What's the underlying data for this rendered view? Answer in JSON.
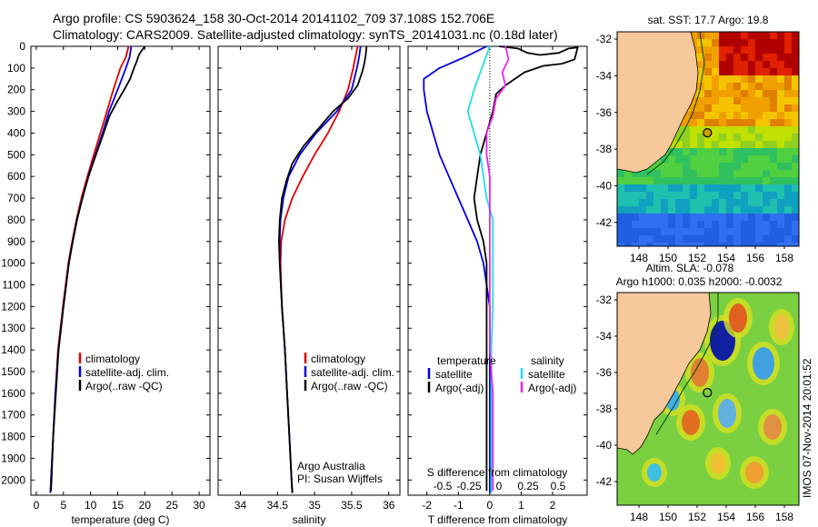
{
  "header": {
    "line1": "Argo profile: CS 5903624_158 30-Oct-2014 20141102_709 37.108S 152.706E",
    "line2": "Climatology: CARS2009. Satellite-adjusted climatology: synTS_20141031.nc (0.18d later)"
  },
  "colors": {
    "climatology": "#dd0000",
    "satellite": "#0000dd",
    "argo": "#000000",
    "sal_satellite": "#22ddee",
    "sal_argo": "#ee22ee",
    "land": "#f6c89a"
  },
  "depth_ticks": [
    "0",
    "100",
    "200",
    "300",
    "400",
    "500",
    "600",
    "700",
    "800",
    "900",
    "1000",
    "1100",
    "1200",
    "1300",
    "1400",
    "1500",
    "1600",
    "1700",
    "1800",
    "1900",
    "2000"
  ],
  "lat_ticks": [
    "-32",
    "-34",
    "-36",
    "-38",
    "-40",
    "-42"
  ],
  "lon_ticks": [
    "148",
    "150",
    "152",
    "154",
    "156",
    "158"
  ],
  "chart_data": [
    {
      "type": "line",
      "xlabel": "temperature (deg C)",
      "ylim": [
        2070,
        0
      ],
      "xlim": [
        -1,
        32
      ],
      "x_ticks": [
        "0",
        "5",
        "10",
        "15",
        "20",
        "25",
        "30"
      ],
      "legend": [
        "climatology",
        "satellite-adj. clim.",
        "Argo(..raw -QC)"
      ],
      "series": [
        {
          "name": "climatology",
          "color": "#dd0000",
          "points": [
            [
              17.0,
              0
            ],
            [
              16.5,
              50
            ],
            [
              15.5,
              100
            ],
            [
              14.2,
              200
            ],
            [
              13.0,
              300
            ],
            [
              11.8,
              400
            ],
            [
              10.6,
              500
            ],
            [
              9.4,
              600
            ],
            [
              8.3,
              700
            ],
            [
              7.4,
              800
            ],
            [
              6.6,
              900
            ],
            [
              5.9,
              1000
            ],
            [
              4.9,
              1200
            ],
            [
              4.0,
              1400
            ],
            [
              3.5,
              1600
            ],
            [
              3.1,
              1800
            ],
            [
              2.7,
              2000
            ],
            [
              2.6,
              2060
            ]
          ]
        },
        {
          "name": "satellite-adj. clim.",
          "color": "#0000dd",
          "points": [
            [
              17.5,
              0
            ],
            [
              17.2,
              50
            ],
            [
              16.5,
              100
            ],
            [
              15.0,
              200
            ],
            [
              13.4,
              300
            ],
            [
              12.2,
              400
            ],
            [
              10.9,
              500
            ],
            [
              9.6,
              600
            ],
            [
              8.5,
              700
            ],
            [
              7.5,
              800
            ],
            [
              6.7,
              900
            ],
            [
              6.0,
              1000
            ],
            [
              5.0,
              1200
            ],
            [
              4.1,
              1400
            ],
            [
              3.5,
              1600
            ],
            [
              3.1,
              1800
            ],
            [
              2.7,
              2000
            ],
            [
              2.6,
              2060
            ]
          ]
        },
        {
          "name": "Argo(..raw -QC)",
          "color": "#000000",
          "points": [
            [
              20.0,
              0
            ],
            [
              19.4,
              20
            ],
            [
              18.9,
              40
            ],
            [
              18.5,
              70
            ],
            [
              18.0,
              100
            ],
            [
              17.3,
              150
            ],
            [
              16.2,
              200
            ],
            [
              14.8,
              260
            ],
            [
              13.5,
              320
            ],
            [
              12.4,
              400
            ],
            [
              11.0,
              500
            ],
            [
              9.6,
              600
            ],
            [
              8.5,
              700
            ],
            [
              7.5,
              800
            ],
            [
              6.7,
              900
            ],
            [
              6.0,
              1000
            ],
            [
              5.0,
              1200
            ],
            [
              4.1,
              1400
            ],
            [
              3.6,
              1600
            ],
            [
              3.1,
              1800
            ],
            [
              2.8,
              2000
            ],
            [
              2.7,
              2050
            ]
          ]
        }
      ]
    },
    {
      "type": "line",
      "xlabel": "salinity",
      "ylim": [
        2070,
        0
      ],
      "xlim": [
        33.7,
        36.15
      ],
      "x_ticks": [
        "34",
        "34.5",
        "35",
        "35.5",
        "36"
      ],
      "legend": [
        "climatology",
        "satellite-adj. clim.",
        "Argo(..raw -QC)"
      ],
      "annotation": [
        "Argo Australia",
        "PI: Susan Wijffels"
      ],
      "series": [
        {
          "name": "climatology",
          "color": "#dd0000",
          "points": [
            [
              35.58,
              0
            ],
            [
              35.55,
              50
            ],
            [
              35.52,
              100
            ],
            [
              35.45,
              200
            ],
            [
              35.33,
              300
            ],
            [
              35.18,
              400
            ],
            [
              35.0,
              500
            ],
            [
              34.84,
              600
            ],
            [
              34.7,
              700
            ],
            [
              34.6,
              800
            ],
            [
              34.55,
              900
            ],
            [
              34.54,
              1000
            ],
            [
              34.56,
              1200
            ],
            [
              34.6,
              1400
            ],
            [
              34.63,
              1600
            ],
            [
              34.66,
              1800
            ],
            [
              34.69,
              2000
            ],
            [
              34.7,
              2060
            ]
          ]
        },
        {
          "name": "satellite-adj. clim.",
          "color": "#0000dd",
          "points": [
            [
              35.62,
              0
            ],
            [
              35.6,
              50
            ],
            [
              35.57,
              100
            ],
            [
              35.5,
              200
            ],
            [
              35.3,
              300
            ],
            [
              35.02,
              400
            ],
            [
              34.8,
              500
            ],
            [
              34.65,
              600
            ],
            [
              34.58,
              700
            ],
            [
              34.54,
              800
            ],
            [
              34.53,
              900
            ],
            [
              34.53,
              1000
            ],
            [
              34.56,
              1200
            ],
            [
              34.6,
              1400
            ],
            [
              34.63,
              1600
            ],
            [
              34.66,
              1800
            ],
            [
              34.69,
              2000
            ],
            [
              34.7,
              2060
            ]
          ]
        },
        {
          "name": "Argo(..raw -QC)",
          "color": "#000000",
          "points": [
            [
              35.7,
              0
            ],
            [
              35.69,
              40
            ],
            [
              35.67,
              80
            ],
            [
              35.64,
              120
            ],
            [
              35.58,
              180
            ],
            [
              35.45,
              240
            ],
            [
              35.25,
              300
            ],
            [
              35.05,
              380
            ],
            [
              34.85,
              460
            ],
            [
              34.7,
              540
            ],
            [
              34.62,
              620
            ],
            [
              34.56,
              700
            ],
            [
              34.53,
              800
            ],
            [
              34.52,
              900
            ],
            [
              34.53,
              1000
            ],
            [
              34.56,
              1200
            ],
            [
              34.6,
              1400
            ],
            [
              34.63,
              1600
            ],
            [
              34.66,
              1800
            ],
            [
              34.69,
              2000
            ],
            [
              34.7,
              2060
            ]
          ]
        }
      ]
    },
    {
      "type": "line",
      "xlabel": "T difference from climatology",
      "x_ticks": [
        "-2",
        "-1",
        "0",
        "1",
        "2"
      ],
      "xlim": [
        -2.6,
        3.1
      ],
      "ylim": [
        2070,
        0
      ],
      "secondary_xlabel": "S difference from climatology",
      "secondary_x_ticks": [
        "-0.5",
        "-0.25",
        "0",
        "0.25",
        "0.5"
      ],
      "legend": [
        "temperature",
        "satellite",
        "Argo(-adj)",
        "salinity",
        "satellite",
        "Argo(-adj)"
      ],
      "series": [
        {
          "name": "satellite",
          "group": "temperature",
          "color": "#0000dd",
          "points": [
            [
              -0.1,
              0
            ],
            [
              -0.8,
              50
            ],
            [
              -1.6,
              100
            ],
            [
              -2.1,
              150
            ],
            [
              -2.1,
              200
            ],
            [
              -2.0,
              300
            ],
            [
              -1.8,
              400
            ],
            [
              -1.6,
              500
            ],
            [
              -1.3,
              600
            ],
            [
              -1.0,
              700
            ],
            [
              -0.7,
              800
            ],
            [
              -0.4,
              900
            ],
            [
              -0.2,
              1000
            ],
            [
              -0.1,
              1100
            ],
            [
              0.0,
              1200
            ],
            [
              0.0,
              1400
            ],
            [
              0.0,
              1600
            ],
            [
              0.0,
              1800
            ],
            [
              0.0,
              2000
            ],
            [
              0.0,
              2060
            ]
          ]
        },
        {
          "name": "Argo(-adj)",
          "group": "temperature",
          "color": "#000000",
          "points": [
            [
              0.3,
              0
            ],
            [
              0.9,
              10
            ],
            [
              1.2,
              30
            ],
            [
              1.6,
              40
            ],
            [
              2.2,
              30
            ],
            [
              2.5,
              10
            ],
            [
              2.8,
              5
            ],
            [
              2.7,
              60
            ],
            [
              2.3,
              80
            ],
            [
              1.7,
              90
            ],
            [
              1.1,
              120
            ],
            [
              0.5,
              180
            ],
            [
              0.2,
              220
            ],
            [
              0.1,
              300
            ],
            [
              -0.1,
              400
            ],
            [
              -0.3,
              500
            ],
            [
              -0.4,
              600
            ],
            [
              -0.5,
              700
            ],
            [
              -0.4,
              800
            ],
            [
              -0.2,
              900
            ],
            [
              -0.1,
              1000
            ],
            [
              -0.1,
              1200
            ],
            [
              -0.1,
              1400
            ],
            [
              -0.1,
              1600
            ],
            [
              -0.1,
              1800
            ],
            [
              -0.1,
              2000
            ],
            [
              -0.1,
              2050
            ]
          ]
        },
        {
          "name": "satellite",
          "group": "salinity",
          "color": "#22ddee",
          "points": [
            [
              0.0,
              0
            ],
            [
              -0.5,
              200
            ],
            [
              -0.7,
              300
            ],
            [
              -0.5,
              400
            ],
            [
              -0.3,
              500
            ],
            [
              -0.2,
              600
            ],
            [
              -0.1,
              700
            ],
            [
              0.1,
              800
            ],
            [
              0.1,
              900
            ],
            [
              0.1,
              1000
            ],
            [
              0.1,
              1200
            ],
            [
              0.05,
              1400
            ],
            [
              0.05,
              1600
            ],
            [
              0.05,
              1800
            ],
            [
              0.05,
              2000
            ],
            [
              0.05,
              2060
            ]
          ]
        },
        {
          "name": "Argo(-adj)",
          "group": "salinity",
          "color": "#ee22ee",
          "points": [
            [
              0.5,
              0
            ],
            [
              0.6,
              60
            ],
            [
              0.4,
              120
            ],
            [
              0.5,
              180
            ],
            [
              0.2,
              240
            ],
            [
              0.1,
              320
            ],
            [
              -0.1,
              400
            ],
            [
              -0.1,
              500
            ],
            [
              0.0,
              600
            ],
            [
              0.0,
              800
            ],
            [
              0.0,
              1000
            ],
            [
              0.0,
              1200
            ],
            [
              0.0,
              1400
            ],
            [
              0.1,
              1600
            ],
            [
              0.1,
              1800
            ],
            [
              0.1,
              2000
            ],
            [
              0.1,
              2050
            ]
          ]
        }
      ]
    }
  ],
  "maps": [
    {
      "title": "sat. SST: 17.7 Argo: 19.8",
      "kind": "sst"
    },
    {
      "title_line1": "Altim. SLA: -0.078",
      "title_line2": "Argo h1000: 0.035 h2000: -0.0032",
      "kind": "sla"
    }
  ],
  "footer": {
    "vertical_stamp": "IMOS 07-Nov-2014 20:01:52"
  }
}
